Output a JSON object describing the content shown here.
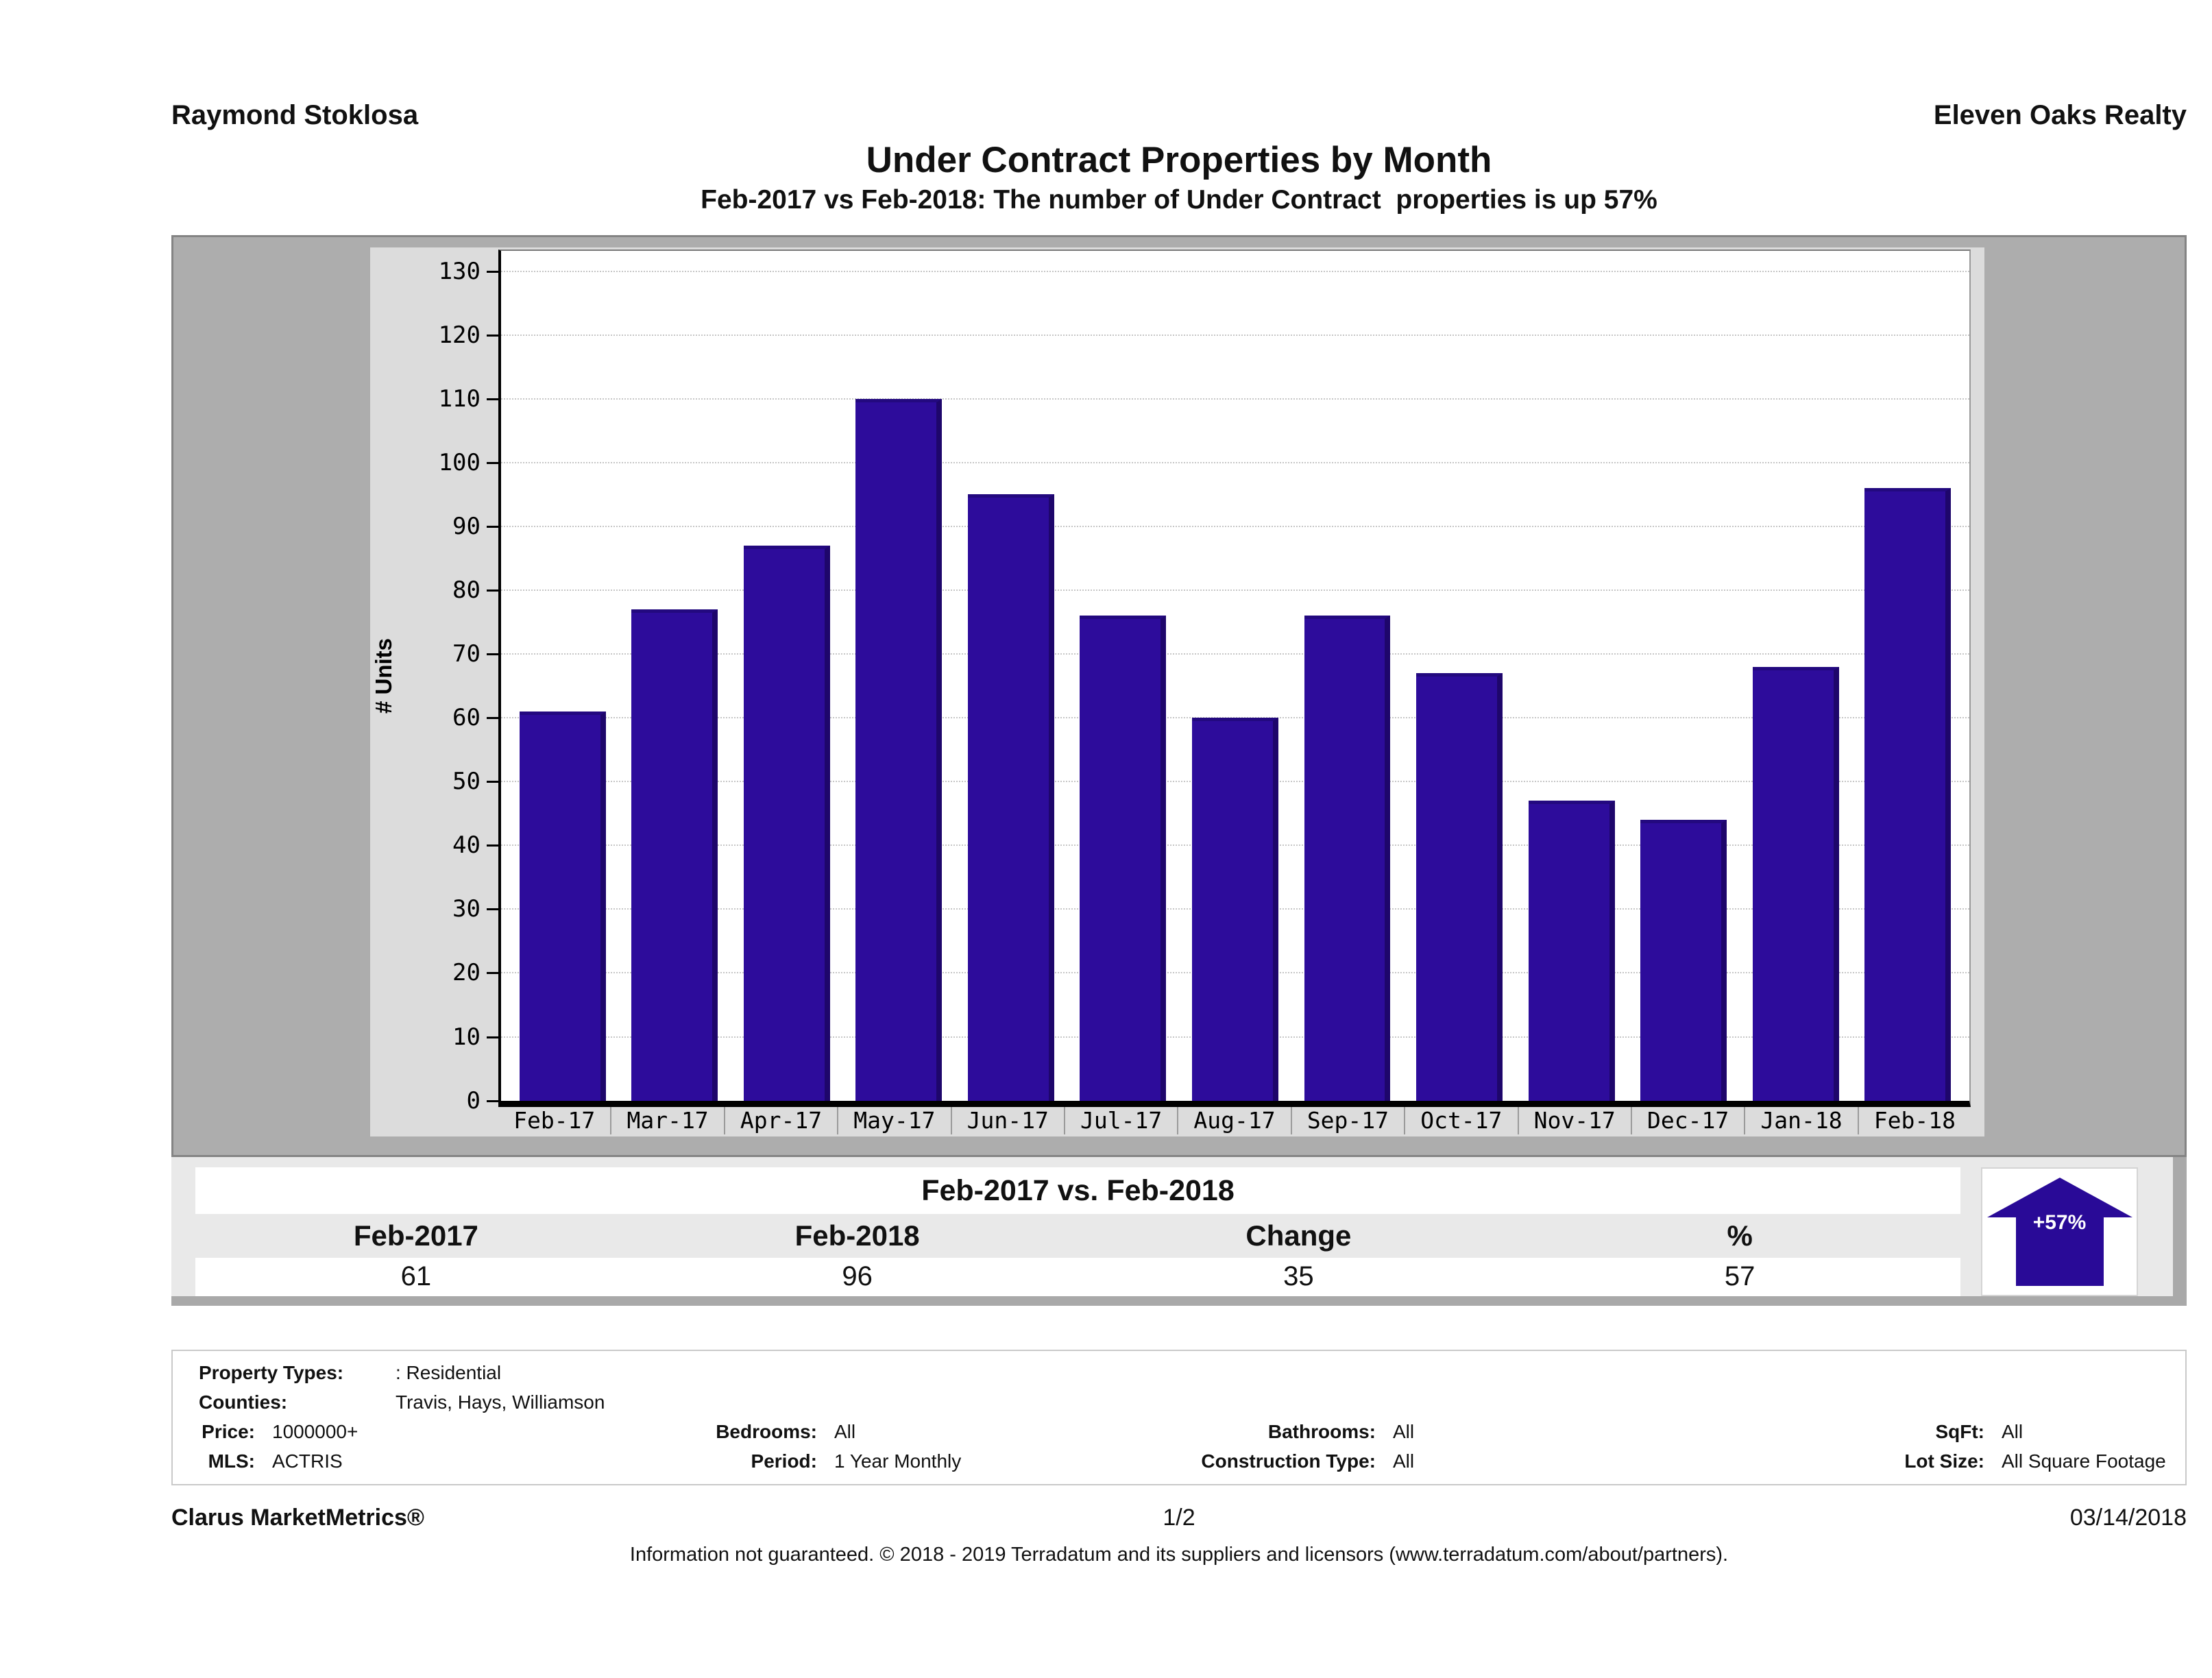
{
  "header": {
    "agent_name": "Raymond Stoklosa",
    "brokerage": "Eleven Oaks Realty",
    "title": "Under Contract Properties by Month",
    "subtitle": "Feb-2017 vs Feb-2018: The number of Under Contract  properties is up 57%"
  },
  "chart_data": {
    "type": "bar",
    "categories": [
      "Feb-17",
      "Mar-17",
      "Apr-17",
      "May-17",
      "Jun-17",
      "Jul-17",
      "Aug-17",
      "Sep-17",
      "Oct-17",
      "Nov-17",
      "Dec-17",
      "Jan-18",
      "Feb-18"
    ],
    "values": [
      61,
      77,
      87,
      110,
      95,
      76,
      60,
      76,
      67,
      47,
      44,
      68,
      96
    ],
    "title": "",
    "xlabel": "",
    "ylabel": "# Units",
    "ylim": [
      0,
      130
    ],
    "ytick_step": 10,
    "grid": "horizontal-dotted",
    "bar_color": "#2d0c9b",
    "legend_position": "none"
  },
  "comparison": {
    "title": "Feb-2017 vs. Feb-2018",
    "columns": [
      "Feb-2017",
      "Feb-2018",
      "Change",
      "%"
    ],
    "values": [
      "61",
      "96",
      "35",
      "57"
    ],
    "arrow": {
      "label": "+57%",
      "direction": "up",
      "color": "#290a97"
    }
  },
  "criteria": {
    "property_types_label": "Property Types:",
    "property_types": ": Residential",
    "counties_label": "Counties:",
    "counties": "Travis, Hays, Williamson",
    "price_label": "Price:",
    "price": "1000000+",
    "bedrooms_label": "Bedrooms:",
    "bedrooms": "All",
    "bathrooms_label": "Bathrooms:",
    "bathrooms": "All",
    "sqft_label": "SqFt:",
    "sqft": "All",
    "mls_label": "MLS:",
    "mls": "ACTRIS",
    "period_label": "Period:",
    "period": "1 Year Monthly",
    "construction_label": "Construction Type:",
    "construction": "All",
    "lot_size_label": "Lot Size:",
    "lot_size": "All Square Footage"
  },
  "footer": {
    "product": "Clarus MarketMetrics®",
    "page_number": "1/2",
    "date": "03/14/2018",
    "disclaimer": "Information not guaranteed. © 2018 - 2019 Terradatum and its suppliers and licensors (www.terradatum.com/about/partners)."
  }
}
